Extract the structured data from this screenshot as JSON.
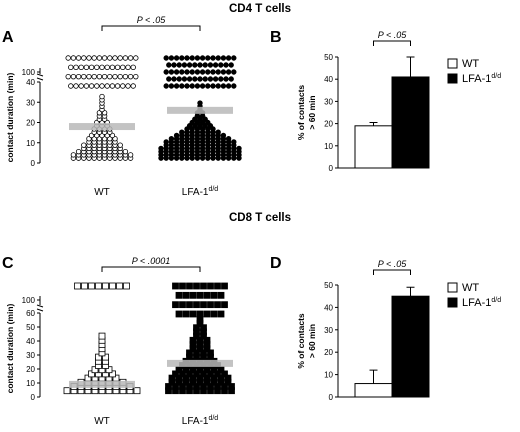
{
  "figure": {
    "top_title": "CD4 T cells",
    "bottom_title": "CD8 T cells",
    "panel_letters": [
      "A",
      "B",
      "C",
      "D"
    ]
  },
  "colors": {
    "wt_fill": "#ffffff",
    "lfa_fill": "#000000",
    "median_band": "#b8b8b8",
    "stroke": "#000000"
  },
  "chart_data": [
    {
      "id": "A",
      "type": "scatter",
      "ylabel": "contact duration (min)",
      "broken_axis": true,
      "ylim_lower": [
        0,
        40
      ],
      "ylim_upper": [
        100,
        100
      ],
      "yticks_lower": [
        0,
        10,
        20,
        30,
        40
      ],
      "yticks_upper": [
        100
      ],
      "categories": [
        {
          "label": "WT",
          "sup": "",
          "marker": "open-circle",
          "median": 18,
          "counts_per_level": [
            0,
            12,
            12,
            10,
            8,
            8,
            6,
            6,
            5,
            4,
            4,
            3,
            3,
            2,
            2,
            2,
            1,
            1,
            1,
            1,
            1,
            0,
            0,
            0,
            0
          ],
          "upper_points": 55
        },
        {
          "label": "LFA-1",
          "sup": "d/d",
          "marker": "filled-circle",
          "median": 26,
          "counts_per_level": [
            0,
            16,
            16,
            16,
            16,
            14,
            14,
            12,
            10,
            8,
            6,
            5,
            4,
            3,
            2,
            2,
            1,
            1,
            1,
            0,
            0,
            0,
            0,
            0,
            0
          ],
          "upper_points": 70
        }
      ],
      "significance": "P < .05"
    },
    {
      "id": "B",
      "type": "bar",
      "ylabel": "% of contacts > 60 min",
      "ylim": [
        0,
        50
      ],
      "yticks": [
        0,
        10,
        20,
        30,
        40,
        50
      ],
      "categories": [
        "WT",
        "LFA-1 d/d"
      ],
      "values": [
        19,
        41
      ],
      "errors": [
        1.5,
        9
      ],
      "significance": "P < .05",
      "legend": [
        {
          "label": "WT",
          "sup": ""
        },
        {
          "label": "LFA-1",
          "sup": "d/d"
        }
      ]
    },
    {
      "id": "C",
      "type": "scatter",
      "ylabel": "contact duration (min)",
      "broken_axis": true,
      "ylim_lower": [
        0,
        60
      ],
      "ylim_upper": [
        100,
        100
      ],
      "yticks_lower": [
        0,
        10,
        20,
        30,
        40,
        50,
        60
      ],
      "yticks_upper": [
        100
      ],
      "categories": [
        {
          "label": "WT",
          "sup": "",
          "marker": "open-square",
          "median": 9,
          "counts_per_level": [
            0,
            11,
            9,
            7,
            5,
            4,
            3,
            2,
            2,
            2,
            1,
            1,
            1,
            1,
            1,
            0,
            0,
            0,
            0,
            0
          ],
          "upper_points": 8
        },
        {
          "label": "LFA-1",
          "sup": "d/d",
          "marker": "filled-square",
          "median": 24,
          "counts_per_level": [
            0,
            10,
            10,
            9,
            9,
            8,
            7,
            6,
            5,
            4,
            4,
            3,
            3,
            3,
            2,
            2,
            2,
            1,
            1,
            0
          ],
          "upper_points": 30
        }
      ],
      "significance": "P < .0001"
    },
    {
      "id": "D",
      "type": "bar",
      "ylabel": "% of contacts > 60 min",
      "ylim": [
        0,
        50
      ],
      "yticks": [
        0,
        10,
        20,
        30,
        40,
        50
      ],
      "categories": [
        "WT",
        "LFA-1 d/d"
      ],
      "values": [
        6,
        45
      ],
      "errors": [
        6,
        4
      ],
      "significance": "P < .05",
      "legend": [
        {
          "label": "WT",
          "sup": ""
        },
        {
          "label": "LFA-1",
          "sup": "d/d"
        }
      ]
    }
  ]
}
